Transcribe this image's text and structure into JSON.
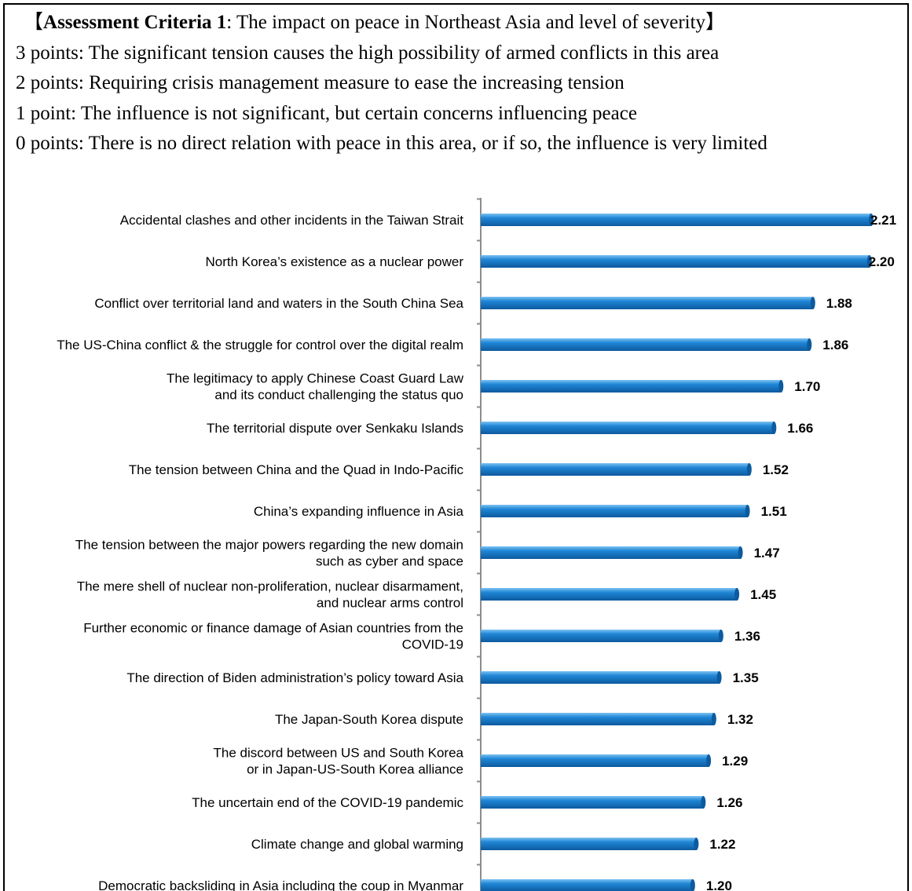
{
  "criteria": {
    "bracket_open": "【",
    "heading_bold": "Assessment Criteria 1",
    "heading_rest": ": The impact on peace in Northeast Asia and level of severity",
    "bracket_close": "】",
    "levels": [
      "3 points: The significant tension causes the high possibility of armed conflicts in this area",
      "2 points: Requiring crisis management measure to ease the increasing tension",
      "1 point: The influence is not significant, but certain concerns influencing peace",
      "0 points: There is no direct relation with peace in this area, or if so, the influence is very limited"
    ]
  },
  "colors": {
    "bar": "#1f86d6",
    "bar_light": "#7cc2f2",
    "bar_dark": "#0d5a9e",
    "axis": "#8c8c8c"
  },
  "chart_data": {
    "type": "bar",
    "orientation": "horizontal",
    "categories": [
      [
        "Accidental clashes and other incidents in the Taiwan Strait"
      ],
      [
        "North Korea’s existence as a nuclear power"
      ],
      [
        "Conflict over territorial land and waters in the South China Sea"
      ],
      [
        "The US-China conflict & the struggle for control over the digital realm"
      ],
      [
        "The legitimacy to apply Chinese Coast Guard Law",
        "and its conduct challenging the status quo"
      ],
      [
        "The territorial dispute over Senkaku Islands"
      ],
      [
        "The tension between China and the Quad in Indo-Pacific"
      ],
      [
        "China’s expanding influence in Asia"
      ],
      [
        "The tension between the major powers regarding the new domain",
        "such as cyber and space"
      ],
      [
        "The mere shell of nuclear non-proliferation, nuclear disarmament,",
        "and nuclear arms control"
      ],
      [
        "Further economic or finance damage of Asian countries from the",
        "COVID-19"
      ],
      [
        "The direction of Biden administration’s policy toward Asia"
      ],
      [
        "The Japan-South Korea dispute"
      ],
      [
        "The discord between US and South Korea",
        "or in Japan-US-South Korea alliance"
      ],
      [
        "The uncertain end of the COVID-19 pandemic"
      ],
      [
        "Climate change and global warming"
      ],
      [
        "Democratic backsliding in Asia including the coup in Myanmar"
      ]
    ],
    "values": [
      2.21,
      2.2,
      1.88,
      1.86,
      1.7,
      1.66,
      1.52,
      1.51,
      1.47,
      1.45,
      1.36,
      1.35,
      1.32,
      1.29,
      1.26,
      1.22,
      1.2
    ],
    "value_labels": [
      "2.21",
      "2.20",
      "1.88",
      "1.86",
      "1.70",
      "1.66",
      "1.52",
      "1.51",
      "1.47",
      "1.45",
      "1.36",
      "1.35",
      "1.32",
      "1.29",
      "1.26",
      "1.22",
      "1.20"
    ],
    "xlim": [
      0,
      2.21
    ],
    "grid": false,
    "legend": "none"
  }
}
